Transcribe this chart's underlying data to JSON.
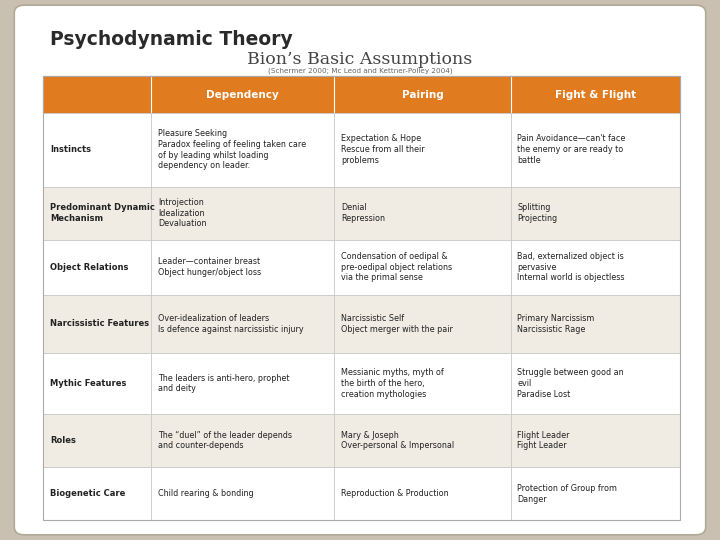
{
  "title1": "Psychodynamic Theory",
  "title2": "Bion’s Basic Assumptions",
  "subtitle": "(Schermer 2000; Mc Leod and Kettner-Polley 2004)",
  "bg_color": "#c9c0b2",
  "card_color": "#ffffff",
  "header_bg": "#e07b20",
  "header_text_color": "#ffffff",
  "row_bg_even": "#f0ece4",
  "row_bg_odd": "#ffffff",
  "border_color": "#cccccc",
  "col_headers": [
    "Dependency",
    "Pairing",
    "Fight & Flight"
  ],
  "row_labels": [
    "Instincts",
    "Predominant Dynamic\nMechanism",
    "Object Relations",
    "Narcissistic Features",
    "Mythic Features",
    "Roles",
    "Biogenetic Care"
  ],
  "cells": [
    [
      "Pleasure Seeking\nParadox feeling of feeling taken care\nof by leading whilst loading\ndependency on leader.",
      "Expectation & Hope\nRescue from all their\nproblems",
      "Pain Avoidance—can't face\nthe enemy or are ready to\nbattle"
    ],
    [
      "Introjection\nIdealization\nDevaluation",
      "Denial\nRepression",
      "Splitting\nProjecting"
    ],
    [
      "Leader—container breast\nObject hunger/object loss",
      "Condensation of oedipal &\npre-oedipal object relations\nvia the primal sense",
      "Bad, externalized object is\npervasive\nInternal world is objectless"
    ],
    [
      "Over-idealization of leaders\nIs defence against narcissistic injury",
      "Narcissistic Self\nObject merger with the pair",
      "Primary Narcissism\nNarcissistic Rage"
    ],
    [
      "The leaders is anti-hero, prophet\nand deity",
      "Messianic myths, myth of\nthe birth of the hero,\ncreation mythologies",
      "Struggle between good an\nevil\nParadise Lost"
    ],
    [
      "The “duel” of the leader depends\nand counter-depends",
      "Mary & Joseph\nOver-personal & Impersonal",
      "Flight Leader\nFight Leader"
    ],
    [
      "Child rearing & bonding",
      "Reproduction & Production",
      "Protection of Group from\nDanger"
    ]
  ]
}
